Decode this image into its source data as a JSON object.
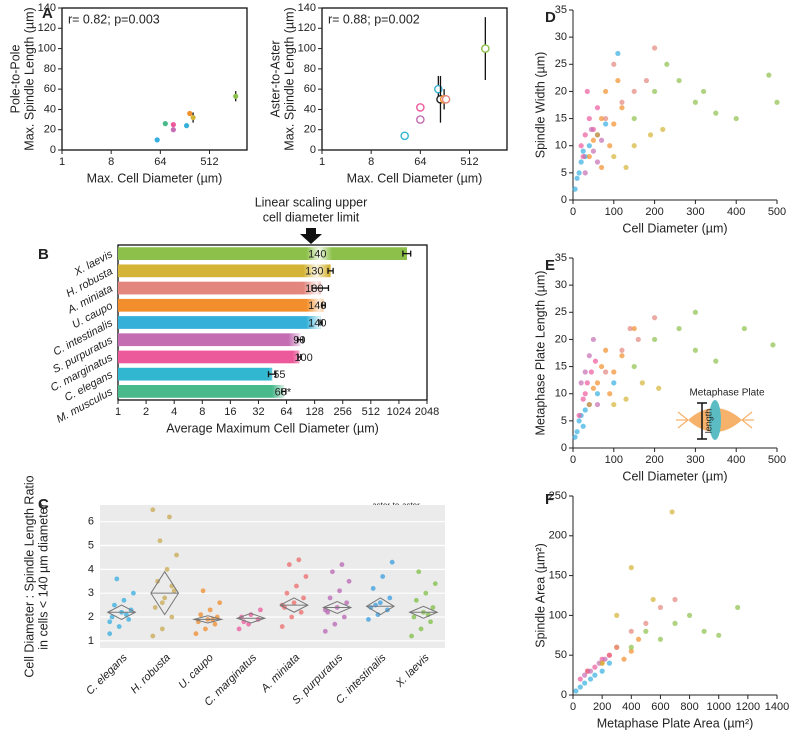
{
  "chart_data": [
    {
      "type": "scatter",
      "panel": "A",
      "annotation": "r= 0.82; p=0.003",
      "xlabel": "Max. Cell Diameter (µm)",
      "ylabel": [
        "Pole-to-Pole",
        "Max. Spindle Length (µm)"
      ],
      "xscale": "log",
      "xlim": [
        1,
        2500
      ],
      "xticks": [
        1,
        8,
        64,
        512
      ],
      "ylim": [
        0,
        140
      ],
      "yticks": [
        0,
        20,
        40,
        60,
        80,
        100,
        120,
        140
      ],
      "marker": "filled",
      "series": [
        {
          "color": "#35aee0",
          "x": [
            56
          ],
          "y": [
            10
          ]
        },
        {
          "color": "#47b98b",
          "x": [
            79
          ],
          "y": [
            26
          ]
        },
        {
          "color": "#ec5a9c",
          "x": [
            111
          ],
          "y": [
            25
          ]
        },
        {
          "color": "#c46db3",
          "x": [
            111
          ],
          "y": [
            20
          ]
        },
        {
          "color": "#35b0d8",
          "x": [
            194
          ],
          "y": [
            24
          ]
        },
        {
          "color": "#f28e2b",
          "x": [
            222
          ],
          "y": [
            36
          ]
        },
        {
          "color": "#d4b436",
          "x": [
            256
          ],
          "y": [
            32
          ],
          "yerr": [
            5
          ]
        },
        {
          "color": "#8dc04a",
          "x": [
            1550
          ],
          "y": [
            53
          ],
          "yerr": [
            5
          ]
        }
      ]
    },
    {
      "type": "scatter",
      "annotation": "r= 0.88; p=0.002",
      "xlabel": "Max. Cell Diameter (µm)",
      "ylabel": [
        "Aster-to-Aster",
        "Max. Spindle Length (µm)"
      ],
      "xscale": "log",
      "xlim": [
        1,
        2500
      ],
      "xticks": [
        1,
        8,
        64,
        512
      ],
      "ylim": [
        0,
        140
      ],
      "yticks": [
        0,
        20,
        40,
        60,
        80,
        100,
        120,
        140
      ],
      "marker": "open",
      "series": [
        {
          "color": "#31b7cf",
          "x": [
            33
          ],
          "y": [
            14
          ]
        },
        {
          "color": "#c46db3",
          "x": [
            64
          ],
          "y": [
            30
          ]
        },
        {
          "color": "#ec5a9c",
          "x": [
            64
          ],
          "y": [
            42
          ]
        },
        {
          "color": "#35b0d8",
          "x": [
            137
          ],
          "y": [
            60
          ],
          "yerr": [
            13
          ]
        },
        {
          "color": "#222222",
          "x": [
            150
          ],
          "y": [
            50
          ],
          "yerr": [
            23
          ]
        },
        {
          "color": "#f28e2b",
          "x": [
            175
          ],
          "y": [
            50
          ],
          "yerr": [
            10
          ]
        },
        {
          "color": "#e3867d",
          "x": [
            190
          ],
          "y": [
            50
          ]
        },
        {
          "color": "#8dc04a",
          "x": [
            1000
          ],
          "y": [
            100
          ],
          "yerr": [
            31
          ]
        }
      ]
    },
    {
      "type": "hbar",
      "panel": "B",
      "annotation": [
        "Linear scaling upper",
        "cell diameter limit"
      ],
      "xlabel": "Average Maximum Cell Diameter (µm)",
      "categories": [
        "X. laevis",
        "H. robusta",
        "A. miniata",
        "U. caupo",
        "C. intestinalis",
        "S. purpuratus",
        "C. marginatus",
        "C. elegans",
        "M. musculus"
      ],
      "values": [
        1250,
        190,
        150,
        160,
        150,
        90,
        88,
        45,
        60
      ],
      "errors": [
        120,
        12,
        30,
        6,
        4,
        6,
        3,
        4,
        3
      ],
      "limits": [
        140,
        130,
        130,
        140,
        140,
        90,
        100,
        55,
        60
      ],
      "limit_labels": [
        "140",
        "130",
        "130",
        "140",
        "140",
        "90",
        "100",
        "55",
        "60*"
      ],
      "colors": [
        "#8dc04a",
        "#d4b436",
        "#e3867d",
        "#f28e2b",
        "#35b0d8",
        "#c46db3",
        "#ec5a9c",
        "#31b7cf",
        "#47b98b"
      ],
      "xscale": "log",
      "xlim": [
        1,
        2048
      ],
      "xticks": [
        1,
        2,
        4,
        8,
        16,
        32,
        64,
        128,
        256,
        512,
        1024,
        2048
      ]
    },
    {
      "type": "strip",
      "panel": "C",
      "inset_label": "aster-to-aster",
      "ylabel": [
        "Cell Diameter : Spindle Length Ratio",
        "in cells < 140 µm diameter"
      ],
      "categories": [
        "C. elegans",
        "H. robusta",
        "U. caupo",
        "C. marginatus",
        "A. miniata",
        "S. purpuratus",
        "C. intestinalis",
        "X. laevis"
      ],
      "colors": [
        "#35aee0",
        "#c8a850",
        "#f08c2c",
        "#ec5a9c",
        "#ee6a6a",
        "#b866b3",
        "#3a9ee0",
        "#7fbf45"
      ],
      "points": [
        [
          1.3,
          1.6,
          1.9,
          2.0,
          2.2,
          2.3,
          2.5,
          2.7,
          3.0,
          3.6,
          2.1,
          1.8
        ],
        [
          1.2,
          1.5,
          2.0,
          2.4,
          2.8,
          3.1,
          3.5,
          4.0,
          4.6,
          5.2,
          6.2,
          6.5,
          2.6,
          3.3
        ],
        [
          1.3,
          1.5,
          1.7,
          1.8,
          1.9,
          2.0,
          2.1,
          2.3,
          2.6,
          3.1,
          1.9
        ],
        [
          1.5,
          1.7,
          1.9,
          2.0,
          2.1,
          2.3,
          1.8
        ],
        [
          1.6,
          2.0,
          2.2,
          2.4,
          2.6,
          2.8,
          3.0,
          3.3,
          3.7,
          4.2,
          4.4,
          2.5
        ],
        [
          1.4,
          1.7,
          2.0,
          2.2,
          2.4,
          2.6,
          2.8,
          3.1,
          3.5,
          3.9,
          4.2,
          2.3
        ],
        [
          1.9,
          2.1,
          2.3,
          2.4,
          2.6,
          2.8,
          3.2,
          3.7,
          4.3,
          2.5
        ],
        [
          1.2,
          1.5,
          1.8,
          2.0,
          2.2,
          2.4,
          2.7,
          3.0,
          3.4,
          3.9,
          2.1
        ]
      ],
      "means": [
        2.2,
        3.0,
        1.9,
        1.95,
        2.5,
        2.4,
        2.45,
        2.2
      ],
      "ci_low": [
        1.9,
        2.1,
        1.75,
        1.75,
        2.2,
        2.15,
        2.1,
        1.95
      ],
      "ci_high": [
        2.5,
        3.9,
        2.05,
        2.15,
        2.8,
        2.65,
        2.8,
        2.45
      ],
      "ylim": [
        0.7,
        6.7
      ],
      "yticks": [
        1,
        2,
        3,
        4,
        5,
        6
      ],
      "grid": true,
      "background": "#ebebeb"
    },
    {
      "type": "scatter",
      "panel": "D",
      "xlabel": "Cell Diameter (µm)",
      "ylabel": [
        "Spindle Width (µm)"
      ],
      "xlim": [
        0,
        500
      ],
      "xticks": [
        0,
        100,
        200,
        300,
        400,
        500
      ],
      "ylim": [
        0,
        35
      ],
      "yticks": [
        0,
        5,
        10,
        15,
        20,
        25,
        30,
        35
      ],
      "marker": "filled",
      "opacity": 0.7,
      "series": [
        {
          "color": "#35aee0",
          "x": [
            5,
            10,
            15,
            20,
            30,
            40,
            60,
            110,
            80,
            25
          ],
          "y": [
            2,
            4,
            5,
            7,
            8,
            10,
            12,
            27,
            14,
            9
          ]
        },
        {
          "color": "#f28e2b",
          "x": [
            40,
            60,
            70,
            80,
            90,
            100,
            120,
            70,
            50,
            110
          ],
          "y": [
            8,
            12,
            15,
            20,
            10,
            14,
            17,
            6,
            11,
            22
          ]
        },
        {
          "color": "#ec5a9c",
          "x": [
            20,
            30,
            40,
            50,
            60,
            25,
            35
          ],
          "y": [
            10,
            12,
            15,
            13,
            17,
            8,
            20
          ]
        },
        {
          "color": "#e3867d",
          "x": [
            80,
            120,
            150,
            200,
            180,
            100
          ],
          "y": [
            15,
            18,
            20,
            28,
            22,
            25
          ]
        },
        {
          "color": "#d4b436",
          "x": [
            100,
            150,
            190,
            220,
            130
          ],
          "y": [
            8,
            10,
            12,
            13,
            6
          ]
        },
        {
          "color": "#8dc04a",
          "x": [
            150,
            200,
            260,
            300,
            350,
            400,
            480,
            500,
            230,
            320
          ],
          "y": [
            15,
            20,
            22,
            18,
            16,
            15,
            23,
            18,
            25,
            20
          ]
        },
        {
          "color": "#c46db3",
          "x": [
            30,
            50,
            70,
            60,
            45
          ],
          "y": [
            5,
            9,
            11,
            7,
            13
          ]
        }
      ]
    },
    {
      "type": "scatter",
      "panel": "E",
      "inset_labels": [
        "Metaphase Plate",
        "length"
      ],
      "xlabel": "Cell Diameter (µm)",
      "ylabel": [
        "Metaphase Plate Length (µm)"
      ],
      "xlim": [
        0,
        500
      ],
      "xticks": [
        0,
        100,
        200,
        300,
        400,
        500
      ],
      "ylim": [
        0,
        35
      ],
      "yticks": [
        0,
        5,
        10,
        15,
        20,
        25,
        30,
        35
      ],
      "marker": "filled",
      "opacity": 0.7,
      "series": [
        {
          "color": "#35aee0",
          "x": [
            5,
            10,
            15,
            20,
            30,
            40,
            60,
            100,
            25
          ],
          "y": [
            2,
            3,
            5,
            6,
            7,
            8,
            10,
            12,
            4
          ]
        },
        {
          "color": "#f28e2b",
          "x": [
            40,
            60,
            70,
            80,
            90,
            100,
            120,
            150,
            50
          ],
          "y": [
            8,
            12,
            15,
            18,
            10,
            14,
            17,
            22,
            11
          ]
        },
        {
          "color": "#ec5a9c",
          "x": [
            15,
            25,
            35,
            45,
            55,
            30
          ],
          "y": [
            6,
            9,
            12,
            14,
            16,
            10
          ]
        },
        {
          "color": "#c46db3",
          "x": [
            20,
            30,
            40,
            50,
            60
          ],
          "y": [
            12,
            14,
            17,
            20,
            8
          ]
        },
        {
          "color": "#e3867d",
          "x": [
            80,
            120,
            160,
            200,
            140
          ],
          "y": [
            14,
            18,
            20,
            24,
            22
          ]
        },
        {
          "color": "#d4b436",
          "x": [
            100,
            130,
            170,
            210
          ],
          "y": [
            8,
            9,
            12,
            11
          ]
        },
        {
          "color": "#8dc04a",
          "x": [
            150,
            200,
            260,
            300,
            350,
            420,
            490,
            300
          ],
          "y": [
            15,
            20,
            22,
            18,
            16,
            22,
            19,
            25
          ]
        }
      ]
    },
    {
      "type": "scatter",
      "panel": "F",
      "xlabel": "Metaphase Plate Area (µm²)",
      "ylabel": [
        "Spindle Area (µm²)"
      ],
      "xlim": [
        0,
        1400
      ],
      "xticks": [
        0,
        200,
        400,
        600,
        800,
        1000,
        1200,
        1400
      ],
      "ylim": [
        0,
        250
      ],
      "yticks": [
        0,
        50,
        100,
        150,
        200,
        250
      ],
      "marker": "filled",
      "opacity": 0.7,
      "series": [
        {
          "color": "#35aee0",
          "x": [
            20,
            50,
            80,
            120,
            150,
            200,
            250
          ],
          "y": [
            5,
            10,
            15,
            20,
            25,
            30,
            40
          ]
        },
        {
          "color": "#f28e2b",
          "x": [
            100,
            200,
            250,
            300,
            350,
            400,
            450
          ],
          "y": [
            30,
            40,
            50,
            60,
            45,
            55,
            70
          ]
        },
        {
          "color": "#ec5a9c",
          "x": [
            50,
            100,
            150,
            200,
            250
          ],
          "y": [
            20,
            30,
            35,
            45,
            50
          ]
        },
        {
          "color": "#c46db3",
          "x": [
            80,
            120,
            180,
            220
          ],
          "y": [
            25,
            30,
            40,
            45
          ]
        },
        {
          "color": "#e3867d",
          "x": [
            300,
            400,
            500,
            600,
            700
          ],
          "y": [
            60,
            80,
            90,
            110,
            120
          ]
        },
        {
          "color": "#d4b436",
          "x": [
            200,
            300,
            400,
            550,
            680
          ],
          "y": [
            40,
            100,
            160,
            120,
            230
          ]
        },
        {
          "color": "#8dc04a",
          "x": [
            400,
            500,
            600,
            700,
            800,
            900,
            1000,
            1130
          ],
          "y": [
            60,
            80,
            70,
            90,
            100,
            80,
            75,
            110
          ]
        }
      ]
    }
  ]
}
